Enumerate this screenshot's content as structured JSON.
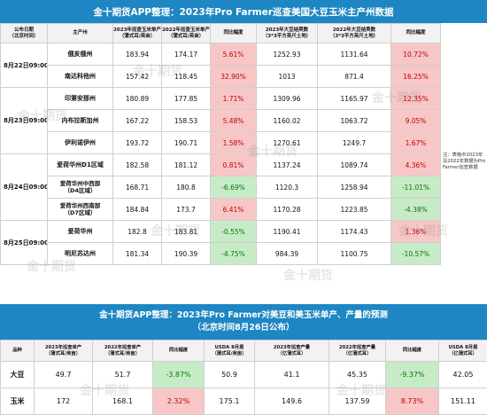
{
  "title1": "金十期货APP整理：2023年Pro Farmer巡查美国大豆玉米主产州数据",
  "headers1": [
    "公布日期\n（北京时间）",
    "主产州",
    "2023年巡查玉米单产\n（蒲式耳/英亩）",
    "2022年巡查玉米单产\n（蒲式耳/英亩）",
    "同比幅度",
    "2023年大豆结荚数\n（3*3平方英尺土地）",
    "2022年大豆结荚数\n（3*3平方英尺土地）",
    "同比幅度"
  ],
  "dates": [
    "8月22日09:00",
    "8月23日09:00",
    "8月24日09:00",
    "8月25日09:00"
  ],
  "rows1": [
    {
      "state": "俄亥俄州",
      "c23": "183.94",
      "c22": "174.17",
      "cp": "5.61%",
      "s23": "1252.93",
      "s22": "1131.64",
      "sp": "10.72%"
    },
    {
      "state": "南达科他州",
      "c23": "157.42",
      "c22": "118.45",
      "cp": "32.90%",
      "s23": "1013",
      "s22": "871.4",
      "sp": "16.25%"
    },
    {
      "state": "印第安那州",
      "c23": "180.89",
      "c22": "177.85",
      "cp": "1.71%",
      "s23": "1309.96",
      "s22": "1165.97",
      "sp": "12.35%"
    },
    {
      "state": "内布拉斯加州",
      "c23": "167.22",
      "c22": "158.53",
      "cp": "5.48%",
      "s23": "1160.02",
      "s22": "1063.72",
      "sp": "9.05%"
    },
    {
      "state": "伊利诺伊州",
      "c23": "193.72",
      "c22": "190.71",
      "cp": "1.58%",
      "s23": "1270.61",
      "s22": "1249.7",
      "sp": "1.67%"
    },
    {
      "state": "爱荷华州D1区域",
      "c23": "182.58",
      "c22": "181.12",
      "cp": "0.81%",
      "s23": "1137.24",
      "s22": "1089.74",
      "sp": "4.36%"
    },
    {
      "state": "爱荷华州中西部\n（D4区域）",
      "c23": "168.71",
      "c22": "180.8",
      "cp": "-6.69%",
      "s23": "1120.3",
      "s22": "1258.94",
      "sp": "-11.01%"
    },
    {
      "state": "爱荷华州西南部\n（D7区域）",
      "c23": "184.84",
      "c22": "173.7",
      "cp": "6.41%",
      "s23": "1170.28",
      "s22": "1223.85",
      "sp": "-4.38%"
    },
    {
      "state": "爱荷华州",
      "c23": "182.8",
      "c22": "183.81",
      "cp": "-0.55%",
      "s23": "1190.41",
      "s22": "1174.43",
      "sp": "1.36%"
    },
    {
      "state": "明尼苏达州",
      "c23": "181.34",
      "c22": "190.39",
      "cp": "-4.75%",
      "s23": "984.39",
      "s22": "1100.75",
      "sp": "-10.57%"
    }
  ],
  "note": "注：表格中2023年及2022年数据为Pro Farmer巡查数据",
  "title2_line1": "金十期货APP整理：2023年Pro Farmer对美豆和美玉米单产、产量的预测",
  "title2_line2": "（北京时间8月26日公布）",
  "headers2": [
    "品种",
    "2023年巡查单产\n（蒲式耳/英亩）",
    "2022年巡查单产\n（蒲式耳/英亩）",
    "同比幅度",
    "USDA 8月报\n（蒲式耳/英亩）",
    "2023年巡查产量\n（亿蒲式耳）",
    "2022年巡查产量\n（亿蒲式耳）",
    "同比幅度",
    "USDA 8月报\n（亿蒲式耳）"
  ],
  "rows2": [
    {
      "crop": "大豆",
      "y23": "49.7",
      "y22": "51.7",
      "yp": "-3.87%",
      "yu": "50.9",
      "p23": "41.1",
      "p22": "45.35",
      "pp": "-9.37%",
      "pu": "42.05"
    },
    {
      "crop": "玉米",
      "y23": "172",
      "y22": "168.1",
      "yp": "2.32%",
      "yu": "175.1",
      "p23": "149.6",
      "p22": "137.59",
      "pp": "8.73%",
      "pu": "151.11"
    }
  ],
  "watermark": "金十期货"
}
